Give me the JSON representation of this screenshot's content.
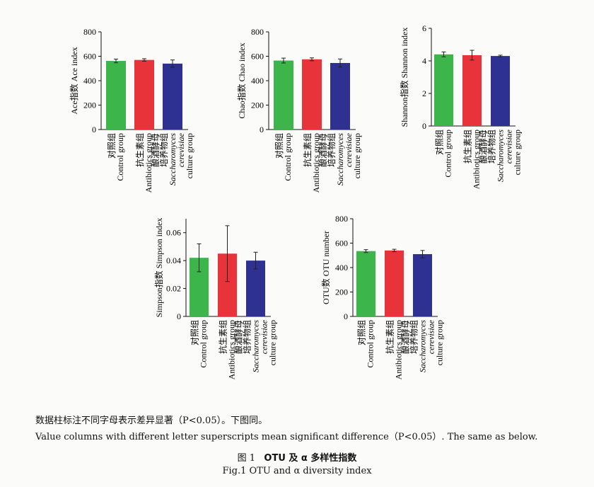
{
  "categories": [
    [
      "对照组",
      "Control group"
    ],
    [
      "抗生素组",
      "Antibiotics group"
    ],
    [
      "酿酒酵母",
      "培养物组",
      "Saccharomyces",
      "cerevisiae",
      "culture group"
    ]
  ],
  "colors": {
    "control": "#3cb64a",
    "antibiotics": "#e8333a",
    "yeast": "#2e3192"
  },
  "chart_data": [
    {
      "type": "bar",
      "ylabel": "Ace指数 Ace index",
      "ylim": [
        0,
        800
      ],
      "yticks": [
        "0",
        "200",
        "400",
        "600",
        "800"
      ],
      "categories": [
        "对照组 Control group",
        "抗生素组 Antibiotics group",
        "酿酒酵母培养物组 Saccharomyces cerevisiae culture group"
      ],
      "values": [
        562,
        570,
        540
      ],
      "errors": [
        15,
        10,
        30
      ]
    },
    {
      "type": "bar",
      "ylabel": "Chao指数 Chao index",
      "ylim": [
        0,
        800
      ],
      "yticks": [
        "0",
        "200",
        "400",
        "600",
        "800"
      ],
      "categories": [
        "对照组 Control group",
        "抗生素组 Antibiotics group",
        "酿酒酵母培养物组 Saccharomyces cerevisiae culture group"
      ],
      "values": [
        565,
        575,
        545
      ],
      "errors": [
        20,
        12,
        33
      ]
    },
    {
      "type": "bar",
      "ylabel": "Shannon指数 Shannon index",
      "ylim": [
        0,
        6
      ],
      "yticks": [
        "0",
        "2",
        "4",
        "6"
      ],
      "categories": [
        "对照组 Control group",
        "抗生素组 Antibiotics group",
        "酿酒酵母培养物组 Saccharomyces cerevisiae culture group"
      ],
      "values": [
        4.4,
        4.35,
        4.3
      ],
      "errors": [
        0.15,
        0.3,
        0.05
      ]
    },
    {
      "type": "bar",
      "ylabel": "Simpson指数 Simpson index",
      "ylim": [
        0,
        0.07
      ],
      "yticks": [
        "0",
        "0.02",
        "0.04",
        "0.06"
      ],
      "categories": [
        "对照组 Control group",
        "抗生素组 Antibiotics group",
        "酿酒酵母培养物组 Saccharomyces cerevisiae culture group"
      ],
      "values": [
        0.042,
        0.045,
        0.04
      ],
      "errors": [
        0.01,
        0.02,
        0.006
      ]
    },
    {
      "type": "bar",
      "ylabel": "OTU数 OTU number",
      "ylim": [
        0,
        800
      ],
      "yticks": [
        "0",
        "200",
        "400",
        "600",
        "800"
      ],
      "categories": [
        "对照组 Control group",
        "抗生素组 Antibiotics group",
        "酿酒酵母培养物组 Saccharomyces cerevisiae culture group"
      ],
      "values": [
        535,
        540,
        510
      ],
      "errors": [
        12,
        10,
        30
      ]
    }
  ],
  "caption": {
    "cn": "数据柱标注不同字母表示差异显著（P<0.05）。下图同。",
    "en": "Value columns with different letter superscripts mean significant difference（P<0.05）. The same as below."
  },
  "figure": {
    "cn_label": "图 1",
    "cn_title": "OTU 及 α 多样性指数",
    "en": "Fig.1    OTU and α diversity index"
  }
}
